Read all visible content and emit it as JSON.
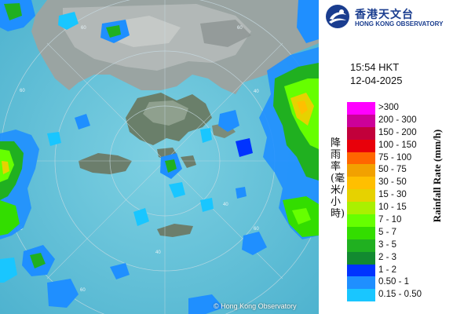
{
  "map": {
    "copyright": "© Hong Kong Observatory",
    "range_ring_labels": [
      "60",
      "60",
      "40",
      "40",
      "40",
      "60",
      "60",
      "60",
      "60"
    ]
  },
  "header": {
    "logo_cn": "香港天文台",
    "logo_en": "HONG KONG OBSERVATORY"
  },
  "observation": {
    "time": "15:54 HKT",
    "date": "12-04-2025"
  },
  "legend": {
    "title_cn": "降雨率(毫米/小時)",
    "title_en": "Rainfall Rate (mm/h)",
    "items": [
      {
        "label": ">300",
        "color": "#ff00ff"
      },
      {
        "label": "200 - 300",
        "color": "#cc0099"
      },
      {
        "label": "150 - 200",
        "color": "#c2003b"
      },
      {
        "label": "100 - 150",
        "color": "#e8000a"
      },
      {
        "label": "75 - 100",
        "color": "#ff6600"
      },
      {
        "label": "50 - 75",
        "color": "#f2a100"
      },
      {
        "label": "30 - 50",
        "color": "#ffbf00"
      },
      {
        "label": "15 - 30",
        "color": "#e6d200"
      },
      {
        "label": "10 - 15",
        "color": "#aaf000"
      },
      {
        "label": "7 - 10",
        "color": "#66ff00"
      },
      {
        "label": "5 - 7",
        "color": "#33dd00"
      },
      {
        "label": "3 - 5",
        "color": "#20b020"
      },
      {
        "label": "2 - 3",
        "color": "#128a30"
      },
      {
        "label": "1 - 2",
        "color": "#0033ff"
      },
      {
        "label": "0.50 - 1",
        "color": "#1f8fff"
      },
      {
        "label": "0.15 - 0.50",
        "color": "#19c6ff"
      }
    ]
  }
}
